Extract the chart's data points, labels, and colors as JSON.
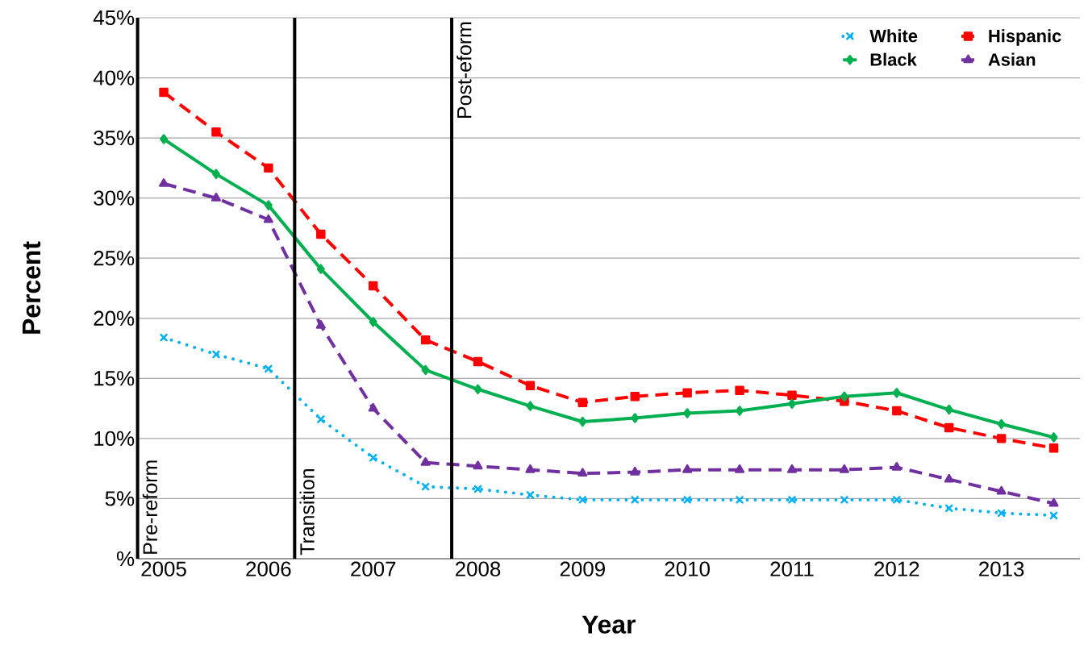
{
  "chart_data": {
    "type": "line",
    "xlabel": "Year",
    "ylabel": "Percent",
    "categories": [
      "2005",
      null,
      "2006",
      null,
      "2007",
      null,
      "2008",
      null,
      "2009",
      null,
      "2010",
      null,
      "2011",
      null,
      "2012",
      null,
      "2013",
      null
    ],
    "series": [
      {
        "name": "White",
        "color": "#00b0f0",
        "marker": "cross",
        "line_style": "dotted",
        "values": [
          18.4,
          17.0,
          15.8,
          11.6,
          8.4,
          6.0,
          5.8,
          5.3,
          4.9,
          4.9,
          4.9,
          4.9,
          4.9,
          4.9,
          4.9,
          4.2,
          3.8,
          3.6
        ]
      },
      {
        "name": "Hispanic",
        "color": "#ff0000",
        "marker": "square",
        "line_style": "dashed",
        "values": [
          38.8,
          35.5,
          32.5,
          27.0,
          22.7,
          18.2,
          16.4,
          14.4,
          13.0,
          13.5,
          13.8,
          14.0,
          13.6,
          13.1,
          12.3,
          10.9,
          10.0,
          9.2
        ]
      },
      {
        "name": "Black",
        "color": "#00b050",
        "marker": "diamond",
        "line_style": "solid",
        "values": [
          34.9,
          32.0,
          29.4,
          24.1,
          19.7,
          15.7,
          14.1,
          12.7,
          11.4,
          11.7,
          12.1,
          12.3,
          12.9,
          13.5,
          13.8,
          12.4,
          11.2,
          10.1
        ]
      },
      {
        "name": "Asian",
        "color": "#7030a0",
        "marker": "triangle",
        "line_style": "dashed",
        "values": [
          31.2,
          30.0,
          28.2,
          19.4,
          12.5,
          8.0,
          7.7,
          7.4,
          7.1,
          7.2,
          7.4,
          7.4,
          7.4,
          7.4,
          7.6,
          6.6,
          5.6,
          4.6
        ]
      }
    ],
    "ylim": [
      0,
      45
    ],
    "yticks": [
      {
        "value": 0,
        "label": "%"
      },
      {
        "value": 5,
        "label": "5%"
      },
      {
        "value": 10,
        "label": "10%"
      },
      {
        "value": 15,
        "label": "15%"
      },
      {
        "value": 20,
        "label": "20%"
      },
      {
        "value": 25,
        "label": "25%"
      },
      {
        "value": 30,
        "label": "30%"
      },
      {
        "value": 35,
        "label": "35%"
      },
      {
        "value": 40,
        "label": "40%"
      },
      {
        "value": 45,
        "label": "45%"
      }
    ],
    "annotations": [
      "Pre-reform",
      "Transition",
      "Post-eform"
    ],
    "grid": "y",
    "legend": "top right"
  }
}
